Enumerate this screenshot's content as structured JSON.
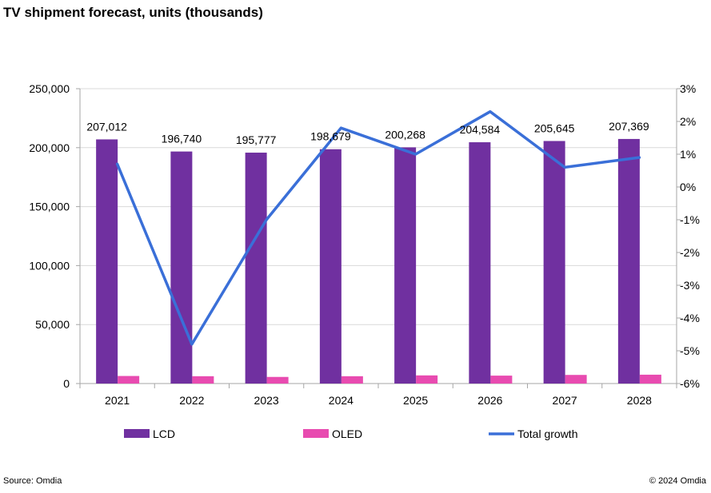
{
  "title": "TV shipment forecast, units (thousands)",
  "footer": {
    "source": "Source: Omdia",
    "copyright": "© 2024 Omdia"
  },
  "chart_data": {
    "type": "bar",
    "categories": [
      "2021",
      "2022",
      "2023",
      "2024",
      "2025",
      "2026",
      "2027",
      "2028"
    ],
    "series": [
      {
        "name": "LCD",
        "kind": "bar",
        "axis": "left",
        "color": "#7030A0",
        "values": [
          207012,
          196740,
          195777,
          198679,
          200268,
          204584,
          205645,
          207369
        ],
        "labels": [
          "207,012",
          "196,740",
          "195,777",
          "198,679",
          "200,268",
          "204,584",
          "205,645",
          "207,369"
        ]
      },
      {
        "name": "OLED",
        "kind": "bar",
        "axis": "left",
        "color": "#E84BB0",
        "values": [
          6400,
          6200,
          5600,
          6200,
          6900,
          6700,
          7300,
          7500
        ]
      },
      {
        "name": "Total growth",
        "kind": "line",
        "axis": "right",
        "color": "#3A6FD8",
        "values": [
          0.7,
          -4.8,
          -1.0,
          1.8,
          1.0,
          2.3,
          0.6,
          0.9
        ]
      }
    ],
    "y_left": {
      "range": [
        0,
        250000
      ],
      "ticks": [
        0,
        50000,
        100000,
        150000,
        200000,
        250000
      ],
      "tick_labels": [
        "0",
        "50,000",
        "100,000",
        "150,000",
        "200,000",
        "250,000"
      ]
    },
    "y_right": {
      "range": [
        -6,
        3
      ],
      "ticks": [
        3,
        2,
        1,
        0,
        -1,
        -2,
        -3,
        -4,
        -5,
        -6
      ],
      "tick_labels": [
        "3%",
        "2%",
        "1%",
        "0%",
        "-1%",
        "-2%",
        "-3%",
        "-4%",
        "-5%",
        "-6%"
      ]
    },
    "grid": true,
    "legend": "bottom"
  }
}
